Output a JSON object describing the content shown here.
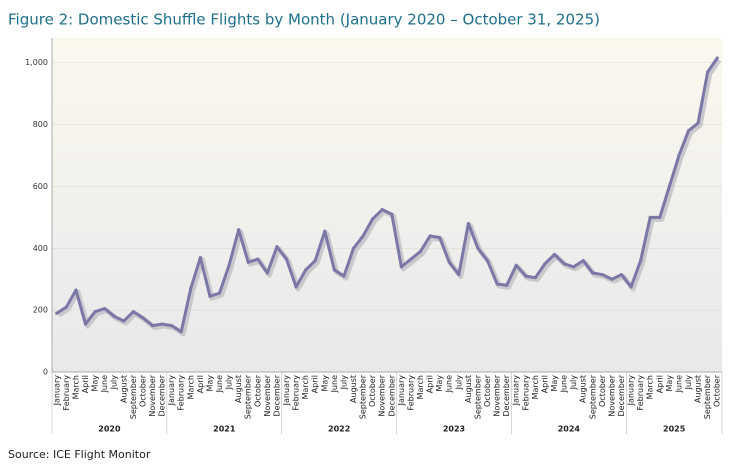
{
  "chart_data": {
    "type": "line",
    "title": "Figure 2: Domestic Shuffle Flights by Month (January 2020 – October 31, 2025)",
    "source": "Source: ICE Flight Monitor",
    "categories": [
      "January",
      "February",
      "March",
      "April",
      "May",
      "June",
      "July",
      "August",
      "September",
      "October",
      "November",
      "December",
      "January",
      "February",
      "March",
      "April",
      "May",
      "June",
      "July",
      "August",
      "September",
      "October",
      "November",
      "December",
      "January",
      "February",
      "March",
      "April",
      "May",
      "June",
      "July",
      "August",
      "September",
      "October",
      "November",
      "December",
      "January",
      "February",
      "March",
      "April",
      "May",
      "June",
      "July",
      "August",
      "September",
      "October",
      "November",
      "December",
      "January",
      "February",
      "March",
      "April",
      "May",
      "June",
      "July",
      "August",
      "September",
      "October",
      "November",
      "December",
      "January",
      "February",
      "March",
      "April",
      "May",
      "June",
      "July",
      "August",
      "September",
      "October"
    ],
    "groups": [
      "2020",
      "2021",
      "2022",
      "2023",
      "2024",
      "2025"
    ],
    "series": [
      {
        "color": "#7b78a8",
        "values": [
          190,
          210,
          265,
          155,
          195,
          205,
          180,
          165,
          195,
          175,
          150,
          155,
          150,
          130,
          270,
          370,
          245,
          255,
          345,
          460,
          355,
          365,
          320,
          405,
          365,
          275,
          330,
          360,
          455,
          330,
          310,
          400,
          440,
          495,
          525,
          510,
          340,
          365,
          390,
          440,
          435,
          355,
          315,
          480,
          400,
          360,
          285,
          280,
          345,
          310,
          305,
          350,
          380,
          350,
          340,
          360,
          320,
          315,
          300,
          315,
          275,
          360,
          500,
          500,
          600,
          700,
          780,
          805,
          970,
          1015
        ]
      }
    ],
    "ylim": [
      0,
      1080
    ],
    "yticks": [
      0,
      200,
      400,
      600,
      800,
      {
        "value": 1000,
        "label": "1,000"
      }
    ],
    "grid": true
  }
}
